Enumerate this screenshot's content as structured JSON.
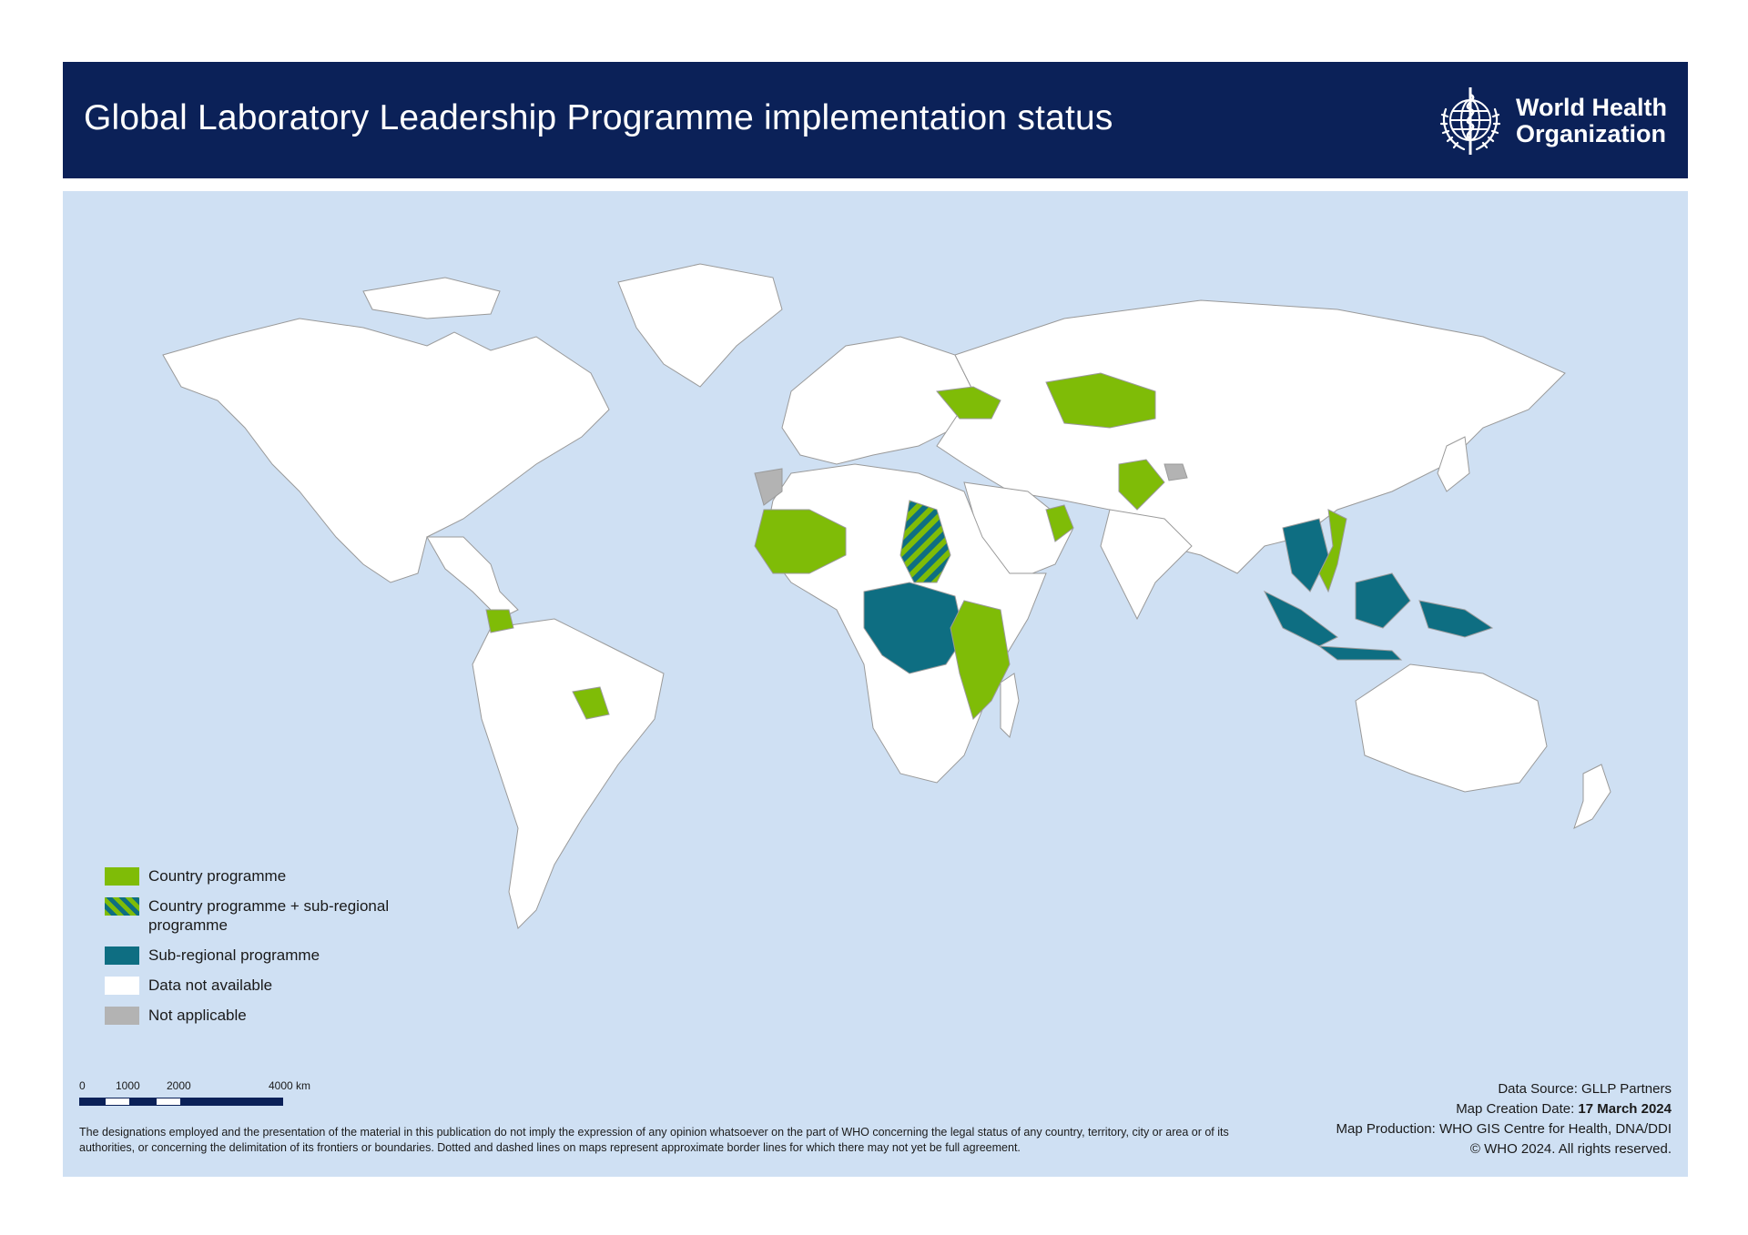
{
  "header": {
    "title": "Global Laboratory Leadership Programme implementation status",
    "logo_text": "World Health\nOrganization"
  },
  "legend": {
    "items": [
      {
        "label": "Country programme",
        "color": "#7fbc07",
        "pattern": "solid"
      },
      {
        "label": "Country programme + sub-regional programme",
        "color": "#7fbc07",
        "color2": "#0e6e82",
        "pattern": "striped"
      },
      {
        "label": "Sub-regional programme",
        "color": "#0e6e82",
        "pattern": "solid"
      },
      {
        "label": "Data not available",
        "color": "#ffffff",
        "pattern": "solid"
      },
      {
        "label": "Not applicable",
        "color": "#b3b3b3",
        "pattern": "solid"
      }
    ]
  },
  "scale": {
    "labels": [
      "0",
      "1000",
      "2000",
      "4000 km"
    ]
  },
  "disclaimer": "The designations employed and the presentation of the material in this publication do not imply the expression of any opinion whatsoever on the part of WHO concerning the legal status of any country, territory, city or area or of its authorities, or concerning the delimitation of its frontiers or boundaries. Dotted and dashed lines on maps represent approximate border lines for which there may not yet be full agreement.",
  "credits": {
    "source": "Data Source: GLLP Partners",
    "date_label": "Map Creation Date: ",
    "date_value": "17 March 2024",
    "production": "Map Production: WHO GIS Centre for Health, DNA/DDI",
    "copyright": "© WHO 2024. All rights reserved."
  },
  "colors": {
    "header_bg": "#0b2158",
    "ocean": "#cfe0f3",
    "land": "#ffffff",
    "border": "#9a9a9a",
    "country_programme": "#7fbc07",
    "sub_regional": "#0e6e82",
    "not_applicable": "#b3b3b3"
  }
}
